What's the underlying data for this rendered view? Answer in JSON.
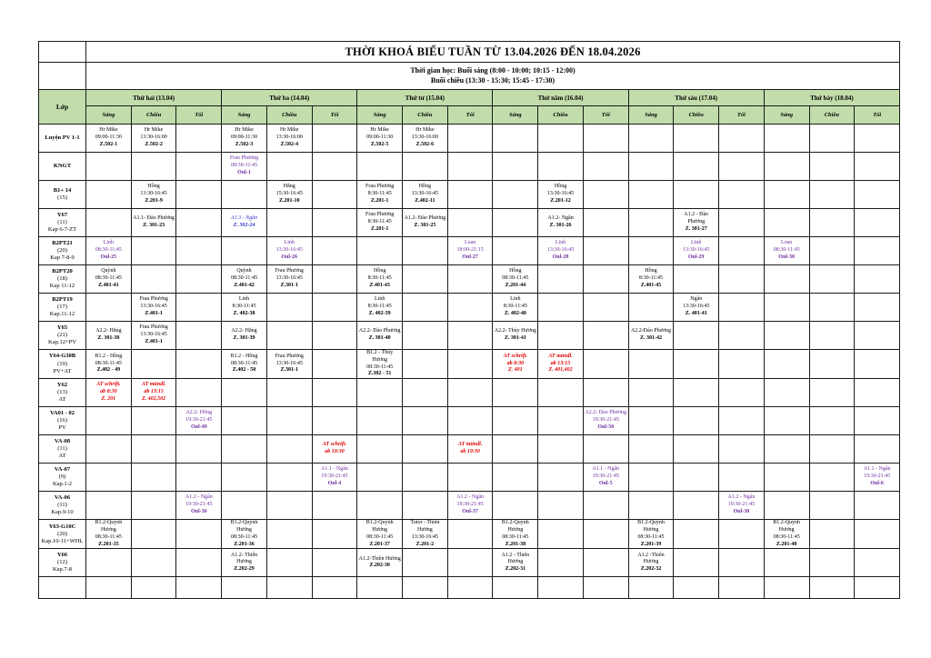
{
  "page": {
    "title": "THỜI KHOÁ BIỂU TUẦN TỪ 13.04.2026 ĐẾN 18.04.2026",
    "time_info": [
      "Thời gian học: Buổi sáng (8:00 - 10:00; 10:15 - 12:00)",
      "Buổi chiều (13:30 - 15:30; 15:45 - 17:30)"
    ],
    "corner_label": "Lớp"
  },
  "days": [
    "Thứ hai (13.04)",
    "Thứ ba (14.04)",
    "Thứ tư (15.04)",
    "Thứ năm (16.04)",
    "Thứ sáu (17.04)",
    "Thứ bảy (18.04)"
  ],
  "sessions": [
    "Sáng",
    "Chiều",
    "Tối"
  ],
  "colors": {
    "header_green": "#c2ddab",
    "purple": "#7030a0",
    "red": "#e00000",
    "blue": "#3333cc"
  },
  "rows": [
    {
      "klass": [
        "Luyện PV 1-1"
      ],
      "cells": {
        "0": {
          "lines": [
            "Hr Mike",
            "09:00-11:30",
            "Z.502-1"
          ]
        },
        "1": {
          "lines": [
            "Hr Mike",
            "13:30-16:00",
            "Z.502-2"
          ]
        },
        "3": {
          "lines": [
            "Hr Mike",
            "09:00-11:30",
            "Z.502-3"
          ]
        },
        "4": {
          "lines": [
            "Hr Mike",
            "13:30-16:00",
            "Z.502-4"
          ]
        },
        "6": {
          "lines": [
            "Hr Mike",
            "09:00-11:30",
            "Z.502-5"
          ]
        },
        "7": {
          "lines": [
            "Hr Mike",
            "13:30-16:00",
            "Z.502-6"
          ]
        }
      }
    },
    {
      "klass": [
        "KNGT"
      ],
      "cells": {
        "3": {
          "lines": [
            "Frau Phương",
            "08:30-11:45",
            "Onl-1"
          ],
          "color": "purple"
        }
      }
    },
    {
      "klass": [
        "B1+ 14",
        "(15)"
      ],
      "cells": {
        "1": {
          "lines": [
            "Hồng",
            "13:30-16:45",
            "Z.201-9"
          ]
        },
        "4": {
          "lines": [
            "Hằng",
            "15:30-16:45",
            "Z.201-10"
          ]
        },
        "6": {
          "lines": [
            "Frau Phương",
            "8:30-11:45",
            "Z.201-1"
          ]
        },
        "7": {
          "lines": [
            "Hồng",
            "13:30-16:45",
            "Z.402-11"
          ]
        },
        "10": {
          "lines": [
            "Hồng",
            "13:30-16:45",
            "Z.201-12"
          ]
        }
      }
    },
    {
      "klass": [
        "Y67",
        "(11)",
        "Kap 6-7-ZT"
      ],
      "cells": {
        "1": {
          "lines": [
            "A1.1- Đào Phương",
            "Z. 301-23"
          ]
        },
        "3": {
          "lines": [
            "A1.3 - Ngân",
            "Z. 302-24"
          ],
          "color": "blue"
        },
        "6": {
          "lines": [
            "Frau Phương",
            "8:30-11:45",
            "Z.201-1"
          ]
        },
        "7": {
          "lines": [
            "A1.2- Đào Phương",
            "Z. 301-25"
          ]
        },
        "10": {
          "lines": [
            "A1.2- Ngân",
            "Z. 301-26"
          ]
        },
        "13": {
          "lines": [
            "A1.2 - Đào Phương",
            "Z. 301-27"
          ]
        }
      }
    },
    {
      "klass": [
        "B2PT21",
        "(20)",
        "Kap 7-8-9"
      ],
      "cells": {
        "0": {
          "lines": [
            "Linh",
            "08:30-11:45",
            "Onl-25"
          ],
          "color": "purple"
        },
        "4": {
          "lines": [
            "Linh",
            "13:30-16:45",
            "Onl-26"
          ],
          "color": "purple"
        },
        "8": {
          "lines": [
            "Loan",
            "18:00-21:15",
            "Onl-27"
          ],
          "color": "purple"
        },
        "10": {
          "lines": [
            "Linh",
            "13:30-16:45",
            "Onl-28"
          ],
          "color": "purple"
        },
        "13": {
          "lines": [
            "Linh",
            "13:30-16:45",
            "Onl-29"
          ],
          "color": "purple"
        },
        "15": {
          "lines": [
            "Loan",
            "08:30-11:45",
            "Onl-30"
          ],
          "color": "purple"
        }
      }
    },
    {
      "klass": [
        "B2PT20",
        "(18)",
        "Kap 11-12"
      ],
      "cells": {
        "0": {
          "lines": [
            "Quỳnh",
            "08:30-11:45",
            "Z.401-41"
          ]
        },
        "3": {
          "lines": [
            "Quỳnh",
            "08:30-11:45",
            "Z.401-42"
          ]
        },
        "4": {
          "lines": [
            "Frau Phương",
            "13:30-16:45",
            "Z.301-1"
          ]
        },
        "6": {
          "lines": [
            "Hồng",
            "8:30-11:45",
            "Z.401-43"
          ]
        },
        "9": {
          "lines": [
            "Hồng",
            "08:30-11:45",
            "Z.201-44"
          ]
        },
        "12": {
          "lines": [
            "Hồng",
            "8:30-11:45",
            "Z.401-45"
          ]
        }
      }
    },
    {
      "klass": [
        "B2PT19",
        "(17)",
        "Kap.11-12"
      ],
      "cells": {
        "1": {
          "lines": [
            "Frau Phương",
            "13:30-16:45",
            "Z.401-1"
          ]
        },
        "3": {
          "lines": [
            "Linh",
            "8:30-11:45",
            "Z. 402-38"
          ]
        },
        "6": {
          "lines": [
            "Linh",
            "8:30-11:45",
            "Z. 402-39"
          ]
        },
        "9": {
          "lines": [
            "Linh",
            "8:30-11:45",
            "Z. 402-40"
          ]
        },
        "13": {
          "lines": [
            "Ngân",
            "13:30-16:45",
            "Z. 401-41"
          ]
        }
      }
    },
    {
      "klass": [
        "Y65",
        "(21)",
        "Kap.12+PV"
      ],
      "cells": {
        "0": {
          "lines": [
            "A2.2- Hằng",
            "Z. 301-38"
          ]
        },
        "1": {
          "lines": [
            "Frau Phương",
            "13:30-16:45",
            "Z.401-1"
          ]
        },
        "3": {
          "lines": [
            "A2.2- Hằng",
            "Z. 301-39"
          ]
        },
        "6": {
          "lines": [
            "A2.2- Đào Phương",
            "Z. 301-40"
          ]
        },
        "9": {
          "lines": [
            "A2.2- Thúy Hương",
            "Z. 301-41"
          ]
        },
        "12": {
          "lines": [
            "A2.2-Đào Phương",
            "Z. 301-42"
          ]
        }
      }
    },
    {
      "klass": [
        "Y64-G30B",
        "(19)",
        "PV+AT"
      ],
      "cells": {
        "0": {
          "lines": [
            "B1.2 - Hồng",
            "08:30-11:45",
            "Z.402 - 49"
          ]
        },
        "3": {
          "lines": [
            "B1.2 - Hồng",
            "08:30-11:45",
            "Z.402 - 50"
          ]
        },
        "4": {
          "lines": [
            "Frau Phương",
            "13:30-16:45",
            "Z.301-1"
          ]
        },
        "6": {
          "lines": [
            "B1.2 - Thúy Hương",
            "08:30-11:45",
            "Z.302 - 51"
          ]
        },
        "9": {
          "lines": [
            "AT schrift.",
            "ab 8:30",
            "Z. 401"
          ],
          "color": "red"
        },
        "10": {
          "lines": [
            "AT mündl.",
            "ab 13:15",
            "Z. 401,402"
          ],
          "color": "red"
        }
      }
    },
    {
      "klass": [
        "Y62",
        "(13)",
        "AT"
      ],
      "cells": {
        "0": {
          "lines": [
            "AT schrift.",
            "ab 8:30",
            "Z. 201"
          ],
          "color": "red"
        },
        "1": {
          "lines": [
            "AT mündl.",
            "ab 13:15",
            "Z. 402,502"
          ],
          "color": "red"
        }
      }
    },
    {
      "klass": [
        "VA01 - 02",
        "(16)",
        "PV"
      ],
      "cells": {
        "2": {
          "lines": [
            "A2.2- Hồng",
            "19:30-21:45",
            "Onl-49"
          ],
          "color": "purple"
        },
        "11": {
          "lines": [
            "A2.2- Đào Phương",
            "19:30-21:45",
            "Onl-50"
          ],
          "color": "purple"
        }
      }
    },
    {
      "klass": [
        "VA-08",
        "(11)",
        "AT"
      ],
      "cells": {
        "5": {
          "lines": [
            "AT schrift.",
            "ab 19:30"
          ],
          "color": "red"
        },
        "8": {
          "lines": [
            "AT mündl.",
            "ab 19:30"
          ],
          "color": "red"
        }
      }
    },
    {
      "klass": [
        "VA-07",
        "(9)",
        "Kap.1-2"
      ],
      "cells": {
        "5": {
          "lines": [
            "A1.1 - Ngân",
            "19:30-21:45",
            "Onl-4"
          ],
          "color": "purple"
        },
        "11": {
          "lines": [
            "A1.1 - Ngân",
            "19:30-21:45",
            "Onl-5"
          ],
          "color": "purple"
        },
        "17": {
          "lines": [
            "A1.1 - Ngân",
            "19:30-21:45",
            "Onl-6"
          ],
          "color": "purple"
        }
      }
    },
    {
      "klass": [
        "VA-06",
        "(11)",
        "Kap.9-10"
      ],
      "cells": {
        "2": {
          "lines": [
            "A1.2 - Ngân",
            "19:30-21:45",
            "Onl-36"
          ],
          "color": "purple"
        },
        "8": {
          "lines": [
            "A1.2 - Ngân",
            "19:30-21:45",
            "Onl-37"
          ],
          "color": "purple"
        },
        "14": {
          "lines": [
            "A1.2 - Ngân",
            "19:30-21:45",
            "Onl-38"
          ],
          "color": "purple"
        }
      }
    },
    {
      "klass": [
        "Y63-G10C",
        "(20)",
        "Kap.10-11+WHL"
      ],
      "cells": {
        "0": {
          "lines": [
            "B1.2-Quỳnh Hương",
            "08:30-11:45",
            "Z.201-35"
          ]
        },
        "3": {
          "lines": [
            "B1.2-Quỳnh Hương",
            "08:30-11:45",
            "Z.201-36"
          ]
        },
        "6": {
          "lines": [
            "B1.2-Quỳnh Hương",
            "08:30-11:45",
            "Z.201-37"
          ]
        },
        "7": {
          "lines": [
            "Tutor - Thiên Hương",
            "13:30-16:45",
            "Z.201-2"
          ]
        },
        "9": {
          "lines": [
            "B1.2-Quỳnh Hương",
            "08:30-11:45",
            "Z.201-38"
          ]
        },
        "12": {
          "lines": [
            "B1.2-Quỳnh Hương",
            "08:30-11:45",
            "Z.201-39"
          ]
        },
        "15": {
          "lines": [
            "B1.2-Quỳnh Hương",
            "08:30-11:45",
            "Z.201-40"
          ]
        }
      }
    },
    {
      "klass": [
        "Y66",
        "(12)",
        "Kap.7-8"
      ],
      "cells": {
        "3": {
          "lines": [
            "A1.2- Thiên Hương",
            "Z.202-29"
          ]
        },
        "6": {
          "lines": [
            "A1.2-Thiên Hương",
            "Z.202-30"
          ]
        },
        "9": {
          "lines": [
            "A1.2 - Thiên Hương",
            "Z.202-31"
          ]
        },
        "12": {
          "lines": [
            "A1.2 -Thiên Hương",
            "Z.202-32"
          ]
        }
      }
    },
    {
      "klass": [],
      "cells": {}
    }
  ]
}
